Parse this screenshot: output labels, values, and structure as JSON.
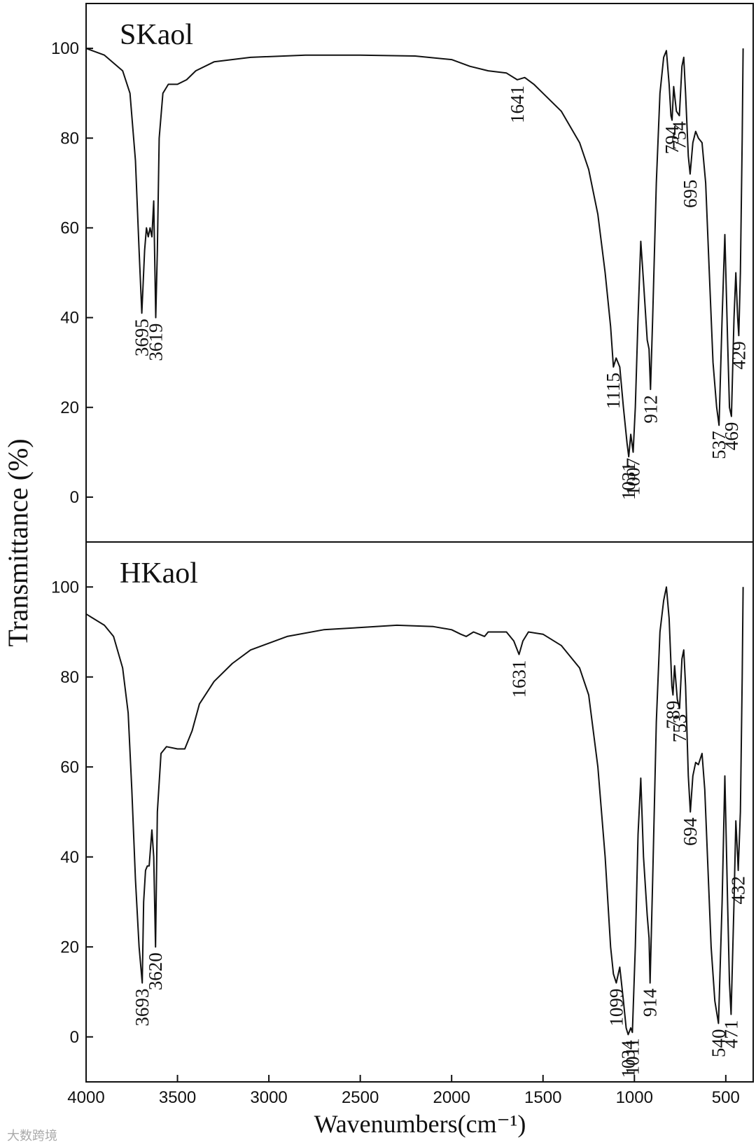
{
  "chart_data": [
    {
      "type": "line",
      "title": "SKaol",
      "ylabel": "Transmittance (%)",
      "color": "#111111",
      "xlim": [
        4000,
        350
      ],
      "ylim": [
        -10,
        110
      ],
      "yticks": [
        0,
        20,
        40,
        60,
        80,
        100
      ],
      "x": [
        4000,
        3900,
        3800,
        3760,
        3730,
        3710,
        3695,
        3680,
        3670,
        3660,
        3650,
        3640,
        3630,
        3619,
        3610,
        3600,
        3580,
        3550,
        3500,
        3450,
        3400,
        3300,
        3100,
        2800,
        2500,
        2200,
        2000,
        1900,
        1800,
        1700,
        1641,
        1600,
        1550,
        1500,
        1400,
        1300,
        1250,
        1200,
        1160,
        1130,
        1115,
        1100,
        1080,
        1060,
        1040,
        1031,
        1020,
        1007,
        995,
        980,
        965,
        950,
        930,
        920,
        912,
        900,
        880,
        860,
        840,
        825,
        810,
        800,
        794,
        785,
        770,
        754,
        740,
        730,
        720,
        705,
        695,
        680,
        665,
        650,
        630,
        610,
        590,
        570,
        550,
        537,
        520,
        505,
        490,
        480,
        469,
        455,
        445,
        435,
        429,
        420,
        410,
        405
      ],
      "values": [
        100,
        98.5,
        95,
        90,
        75,
        55,
        41,
        55,
        60,
        58,
        60,
        58,
        66,
        40,
        55,
        80,
        90,
        92,
        92,
        93,
        95,
        97,
        98,
        98.5,
        98.5,
        98.3,
        97.5,
        96,
        95,
        94.5,
        93,
        93.5,
        92,
        90,
        86,
        79,
        73,
        63,
        50,
        38,
        29,
        31,
        29,
        20,
        12,
        9,
        14,
        10,
        20,
        40,
        57,
        48,
        35,
        33,
        24,
        40,
        70,
        90,
        98,
        99.5,
        92,
        85,
        84,
        91.5,
        86,
        85,
        96,
        98,
        90,
        76,
        72,
        79,
        81.5,
        80,
        79,
        70,
        50,
        30,
        20,
        16,
        40,
        58.5,
        35,
        20,
        18,
        40,
        50,
        40,
        36,
        50,
        80,
        100
      ],
      "annotations": [
        {
          "text": "3695",
          "x": 3695
        },
        {
          "text": "3619",
          "x": 3619
        },
        {
          "text": "1641",
          "x": 1641
        },
        {
          "text": "1115",
          "x": 1115
        },
        {
          "text": "1031",
          "x": 1031
        },
        {
          "text": "1007",
          "x": 1007
        },
        {
          "text": "912",
          "x": 912
        },
        {
          "text": "794",
          "x": 794
        },
        {
          "text": "754",
          "x": 754
        },
        {
          "text": "695",
          "x": 695
        },
        {
          "text": "537",
          "x": 537
        },
        {
          "text": "469",
          "x": 469
        },
        {
          "text": "429",
          "x": 429
        }
      ]
    },
    {
      "type": "line",
      "title": "HKaol",
      "xlabel": "Wavenumbers(cm⁻¹)",
      "color": "#111111",
      "xlim": [
        4000,
        350
      ],
      "ylim": [
        -10,
        110
      ],
      "yticks": [
        0,
        20,
        40,
        60,
        80,
        100
      ],
      "xticks": [
        4000,
        3500,
        3000,
        2500,
        2000,
        1500,
        1000,
        500
      ],
      "x": [
        4000,
        3900,
        3850,
        3800,
        3770,
        3750,
        3730,
        3710,
        3693,
        3685,
        3675,
        3665,
        3655,
        3640,
        3630,
        3620,
        3610,
        3590,
        3560,
        3500,
        3460,
        3420,
        3380,
        3300,
        3200,
        3100,
        2900,
        2700,
        2500,
        2300,
        2100,
        2000,
        1950,
        1920,
        1880,
        1850,
        1820,
        1800,
        1700,
        1660,
        1631,
        1610,
        1580,
        1500,
        1400,
        1300,
        1250,
        1200,
        1160,
        1130,
        1115,
        1099,
        1080,
        1060,
        1045,
        1034,
        1020,
        1011,
        995,
        980,
        965,
        950,
        930,
        920,
        914,
        900,
        880,
        860,
        840,
        825,
        810,
        795,
        789,
        780,
        765,
        753,
        740,
        730,
        720,
        705,
        694,
        680,
        665,
        650,
        630,
        615,
        600,
        580,
        560,
        540,
        520,
        505,
        490,
        480,
        471,
        455,
        445,
        435,
        432,
        420,
        410,
        405
      ],
      "values": [
        94,
        91.5,
        89,
        82,
        72,
        55,
        35,
        20,
        12,
        30,
        37,
        38,
        38,
        46,
        40,
        20,
        50,
        63,
        64.5,
        64,
        64,
        68,
        74,
        79,
        83,
        86,
        89,
        90.5,
        91,
        91.5,
        91.2,
        90.5,
        89.5,
        89,
        90,
        89.5,
        89,
        90,
        90,
        88,
        85,
        88,
        90,
        89.5,
        87,
        82,
        76,
        60,
        40,
        20,
        14,
        12,
        15.5,
        8,
        2,
        0.5,
        2,
        1,
        20,
        45,
        57.5,
        40,
        27,
        22,
        12,
        35,
        70,
        90,
        97,
        100,
        93,
        78,
        76,
        82.5,
        75,
        73,
        84,
        86,
        78,
        58,
        50,
        58,
        61,
        60.5,
        63,
        55,
        40,
        20,
        8,
        3,
        30,
        58,
        30,
        12,
        5,
        30,
        48,
        40,
        37,
        50,
        80,
        100
      ],
      "annotations": [
        {
          "text": "3693",
          "x": 3693
        },
        {
          "text": "3620",
          "x": 3620
        },
        {
          "text": "1631",
          "x": 1631
        },
        {
          "text": "1099",
          "x": 1099
        },
        {
          "text": "1034",
          "x": 1034
        },
        {
          "text": "1011",
          "x": 1011
        },
        {
          "text": "914",
          "x": 914
        },
        {
          "text": "789",
          "x": 789
        },
        {
          "text": "753",
          "x": 753
        },
        {
          "text": "694",
          "x": 694
        },
        {
          "text": "540",
          "x": 540
        },
        {
          "text": "471",
          "x": 471
        },
        {
          "text": "432",
          "x": 432
        }
      ]
    }
  ],
  "watermark": "大数跨境"
}
